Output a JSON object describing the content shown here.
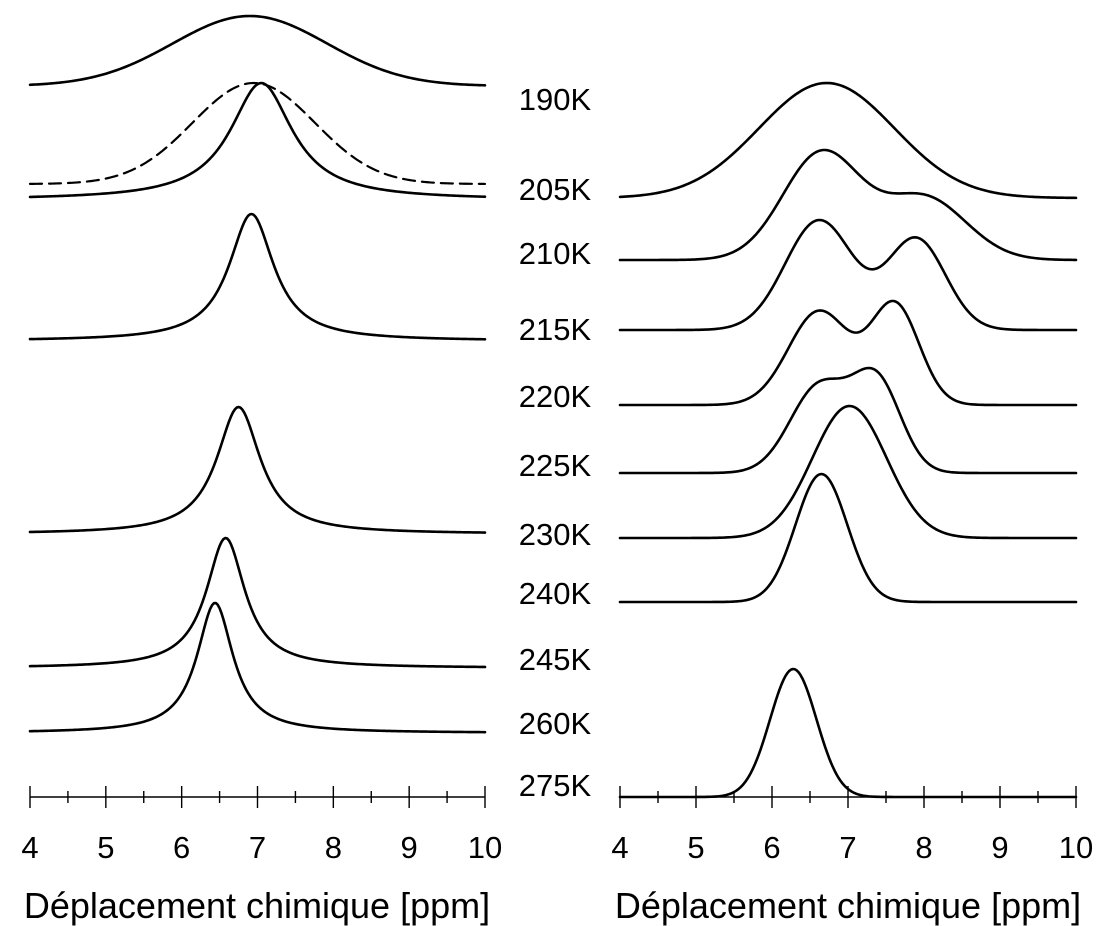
{
  "figure": {
    "temperature_labels": [
      "190K",
      "205K",
      "210K",
      "215K",
      "220K",
      "225K",
      "230K",
      "240K",
      "245K",
      "260K",
      "275K"
    ]
  },
  "chart_data": [
    {
      "type": "line",
      "panel": "left",
      "xlabel": "Déplacement chimique [ppm]",
      "xlim": [
        4,
        10
      ],
      "xticks": [
        "4",
        "5",
        "6",
        "7",
        "8",
        "9",
        "10"
      ],
      "series": [
        {
          "name": "190K",
          "peaks": [
            {
              "center": 6.9,
              "width": 2.4,
              "height": 0.62,
              "shape": "gauss"
            }
          ],
          "baseline": 0
        },
        {
          "name": "",
          "style": "dashed",
          "peaks": [
            {
              "center": 6.95,
              "width": 1.9,
              "height": 0.96,
              "shape": "gauss"
            }
          ],
          "baseline": 0
        },
        {
          "name": "205K",
          "peaks": [
            {
              "center": 7.05,
              "width": 1.0,
              "height": 1.0,
              "shape": "lorentz"
            }
          ],
          "baseline": 0
        },
        {
          "name": "215K",
          "peaks": [
            {
              "center": 6.92,
              "width": 0.72,
              "height": 1.0,
              "shape": "lorentz"
            }
          ],
          "baseline": 0
        },
        {
          "name": "230K",
          "peaks": [
            {
              "center": 6.75,
              "width": 0.7,
              "height": 1.0,
              "shape": "lorentz"
            }
          ],
          "baseline": 0
        },
        {
          "name": "245K",
          "peaks": [
            {
              "center": 6.58,
              "width": 0.62,
              "height": 1.0,
              "shape": "lorentz"
            }
          ],
          "baseline": 0
        },
        {
          "name": "260K",
          "peaks": [
            {
              "center": 6.44,
              "width": 0.58,
              "height": 1.0,
              "shape": "lorentz"
            }
          ],
          "baseline": 0
        }
      ]
    },
    {
      "type": "line",
      "panel": "right",
      "xlabel": "Déplacement chimique [ppm]",
      "xlim": [
        4,
        10
      ],
      "xticks": [
        "4",
        "5",
        "6",
        "7",
        "8",
        "9",
        "10"
      ],
      "series": [
        {
          "name": "205K",
          "peaks": [
            {
              "center": 6.72,
              "width": 2.1,
              "height": 1.0,
              "shape": "gauss"
            }
          ],
          "baseline": 0
        },
        {
          "name": "210K",
          "peaks": [
            {
              "center": 6.65,
              "width": 1.2,
              "height": 0.82,
              "shape": "gauss"
            },
            {
              "center": 8.0,
              "width": 1.3,
              "height": 0.48,
              "shape": "gauss"
            }
          ],
          "baseline": 0
        },
        {
          "name": "215K",
          "peaks": [
            {
              "center": 6.62,
              "width": 1.05,
              "height": 0.93,
              "shape": "gauss"
            },
            {
              "center": 7.9,
              "width": 0.9,
              "height": 0.77,
              "shape": "gauss"
            }
          ],
          "baseline": 0
        },
        {
          "name": "220K",
          "peaks": [
            {
              "center": 6.62,
              "width": 0.95,
              "height": 0.85,
              "shape": "gauss"
            },
            {
              "center": 7.62,
              "width": 0.75,
              "height": 0.9,
              "shape": "gauss"
            }
          ],
          "baseline": 0
        },
        {
          "name": "225K",
          "peaks": [
            {
              "center": 6.62,
              "width": 0.9,
              "height": 0.72,
              "shape": "gauss"
            },
            {
              "center": 7.38,
              "width": 0.75,
              "height": 0.75,
              "shape": "gauss"
            }
          ],
          "baseline": 0
        },
        {
          "name": "230K",
          "peaks": [
            {
              "center": 7.02,
              "width": 1.15,
              "height": 1.0,
              "shape": "gauss"
            }
          ],
          "baseline": 0
        },
        {
          "name": "240K",
          "peaks": [
            {
              "center": 6.65,
              "width": 0.8,
              "height": 1.0,
              "shape": "gauss"
            }
          ],
          "baseline": 0
        },
        {
          "name": "275K",
          "peaks": [
            {
              "center": 6.28,
              "width": 0.72,
              "height": 1.0,
              "shape": "gauss"
            }
          ],
          "baseline": 0
        }
      ]
    }
  ]
}
